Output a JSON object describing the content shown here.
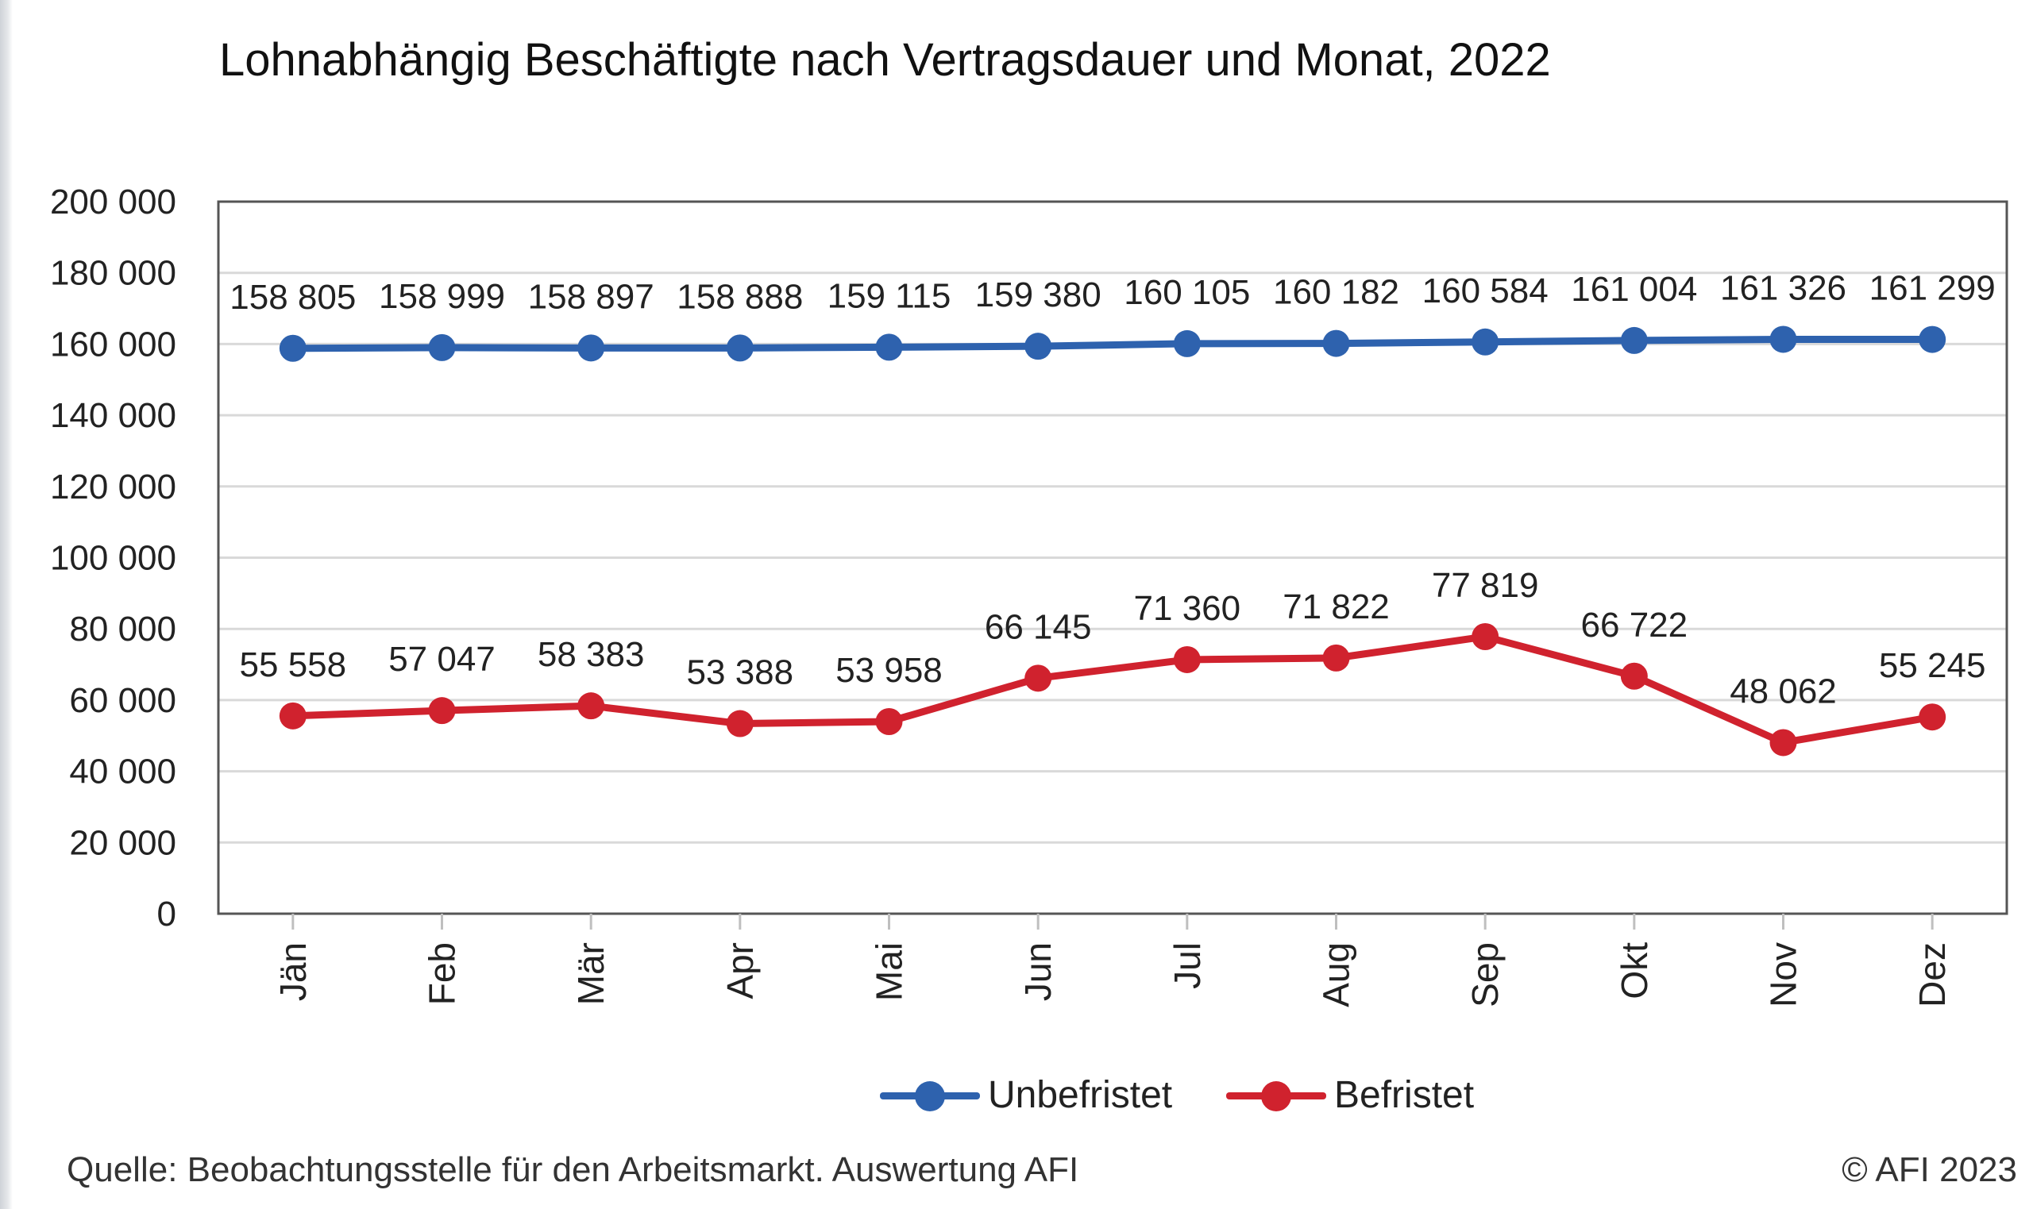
{
  "chart_data": {
    "type": "line",
    "title": "Lohnabhängig Beschäftigte nach Vertragsdauer und Monat, 2022",
    "xlabel": "",
    "ylabel": "",
    "categories": [
      "Jän",
      "Feb",
      "Mär",
      "Apr",
      "Mai",
      "Jun",
      "Jul",
      "Aug",
      "Sep",
      "Okt",
      "Nov",
      "Dez"
    ],
    "ylim": [
      0,
      200000
    ],
    "yticks": [
      0,
      20000,
      40000,
      60000,
      80000,
      100000,
      120000,
      140000,
      160000,
      180000,
      200000
    ],
    "ytick_labels": [
      "0",
      "20 000",
      "40 000",
      "60 000",
      "80 000",
      "100 000",
      "120 000",
      "140 000",
      "160 000",
      "180 000",
      "200 000"
    ],
    "grid": true,
    "legend_position": "bottom-center",
    "series": [
      {
        "name": "Unbefristet",
        "color": "#2E62AE",
        "values": [
          158805,
          158999,
          158897,
          158888,
          159115,
          159380,
          160105,
          160182,
          160584,
          161004,
          161326,
          161299
        ],
        "labels": [
          "158 805",
          "158 999",
          "158 897",
          "158 888",
          "159 115",
          "159 380",
          "160 105",
          "160 182",
          "160 584",
          "161 004",
          "161 326",
          "161 299"
        ]
      },
      {
        "name": "Befristet",
        "color": "#D0222E",
        "values": [
          55558,
          57047,
          58383,
          53388,
          53958,
          66145,
          71360,
          71822,
          77819,
          66722,
          48062,
          55245
        ],
        "labels": [
          "55 558",
          "57 047",
          "58 383",
          "53 388",
          "53 958",
          "66 145",
          "71 360",
          "71 822",
          "77 819",
          "66 722",
          "48 062",
          "55 245"
        ]
      }
    ]
  },
  "footer": {
    "source": "Quelle: Beobachtungsstelle für den Arbeitsmarkt. Auswertung AFI",
    "copyright": "© AFI 2023"
  }
}
